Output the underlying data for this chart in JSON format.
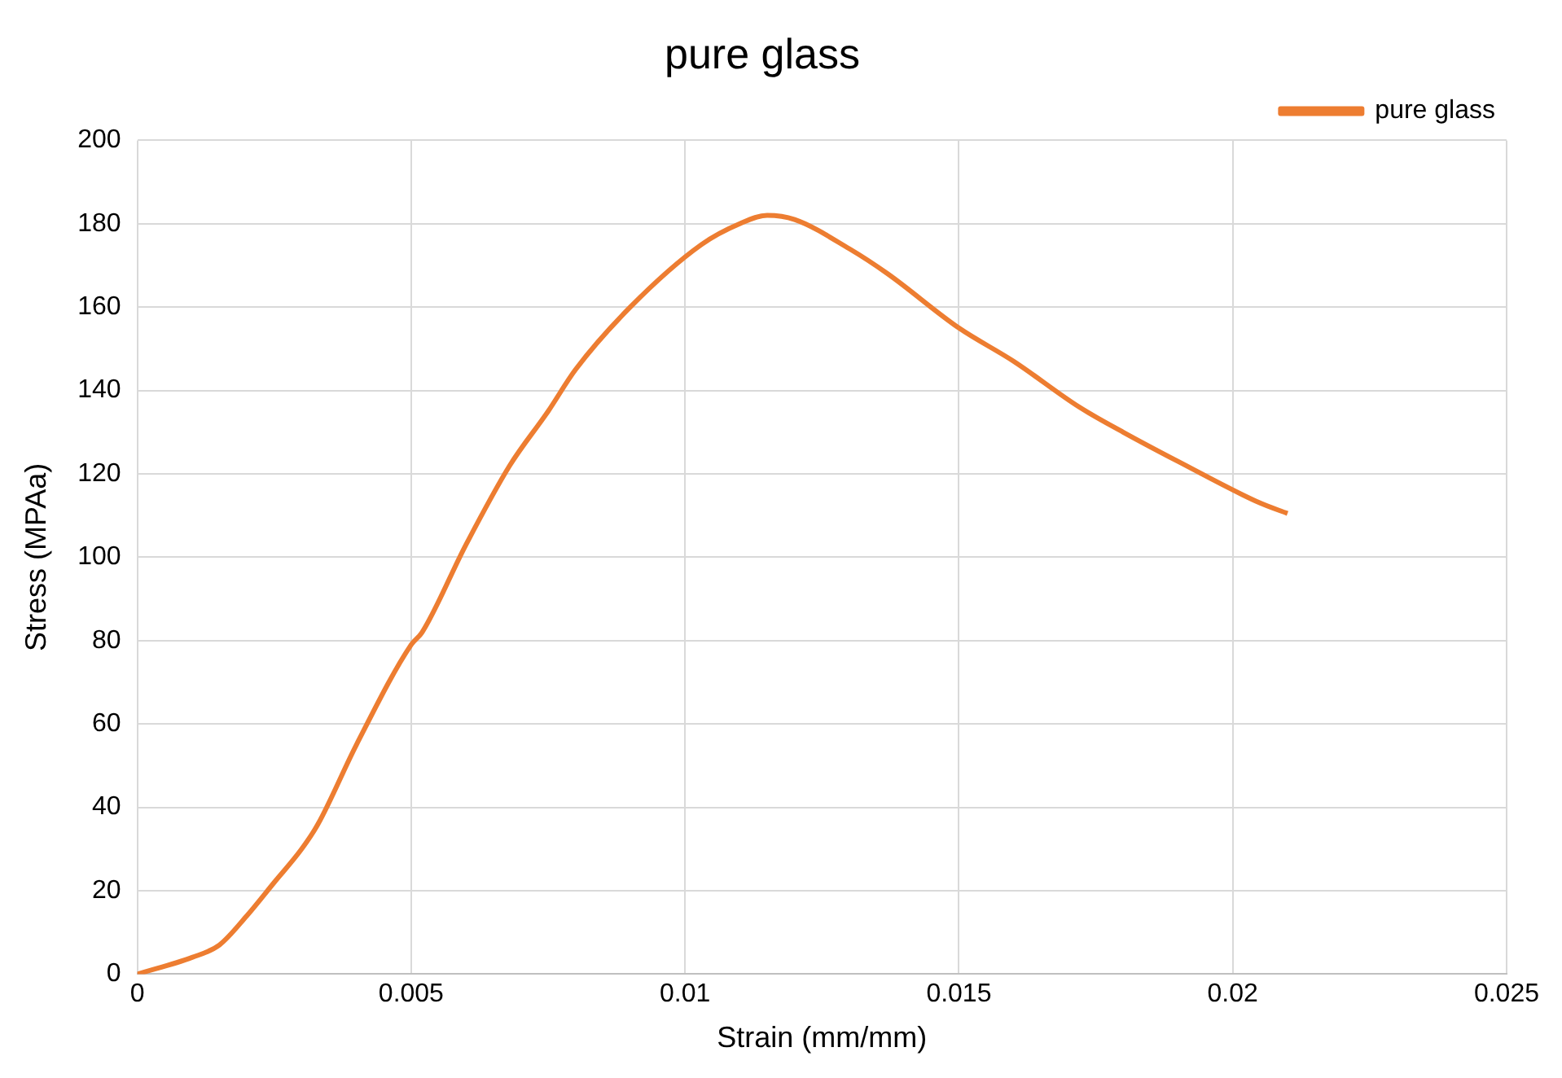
{
  "chart_data": {
    "type": "line",
    "title": "pure glass",
    "xlabel": "Strain (mm/mm)",
    "ylabel": "Stress (MPAa)",
    "xlim": [
      0,
      0.025
    ],
    "xticks": [
      0,
      0.005,
      0.01,
      0.015,
      0.02,
      0.025
    ],
    "ylim": [
      0,
      200
    ],
    "yticks": [
      0,
      20,
      40,
      60,
      80,
      100,
      120,
      140,
      160,
      180,
      200
    ],
    "grid": true,
    "legend": "top right",
    "marker": "none",
    "line_style": "solid",
    "series": [
      {
        "name": "pure glass",
        "color": "#ed7d31",
        "x": [
          0,
          0.001,
          0.0015,
          0.002,
          0.0025,
          0.003,
          0.0033,
          0.004,
          0.005,
          0.0052,
          0.006,
          0.0068,
          0.0075,
          0.008,
          0.009,
          0.0103,
          0.011,
          0.0115,
          0.012,
          0.013,
          0.0137,
          0.015,
          0.016,
          0.0172,
          0.018,
          0.019,
          0.0205,
          0.021
        ],
        "values": [
          0,
          4,
          7,
          14,
          22,
          30,
          36,
          55,
          79,
          82,
          103,
          122,
          135,
          145,
          160,
          175,
          180,
          182,
          181,
          174,
          168,
          155,
          147,
          136,
          130,
          123,
          113,
          110.5
        ]
      }
    ]
  }
}
